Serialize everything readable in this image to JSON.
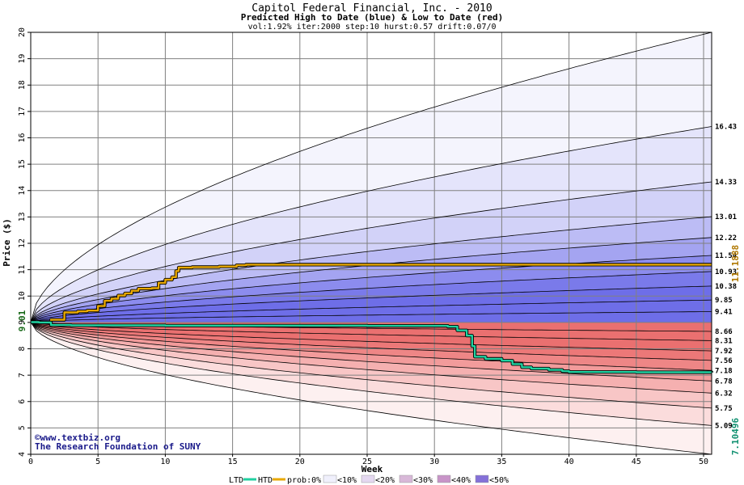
{
  "chart_data": {
    "type": "line",
    "title": "Capitol Federal Financial, Inc. - 2010",
    "subtitle": "Predicted High to Date (blue) &  Low to Date (red)",
    "params": "vol:1.92% iter:2000 step:10 hurst:0.57 drift:0.07/0",
    "xlabel": "Week",
    "ylabel": "Price ($)",
    "xlim": [
      0,
      50.6
    ],
    "ylim": [
      4,
      20
    ],
    "x_ticks": [
      0,
      5,
      10,
      15,
      20,
      25,
      30,
      35,
      40,
      45,
      50
    ],
    "y_ticks": [
      4,
      5,
      6,
      7,
      8,
      9,
      10,
      11,
      12,
      13,
      14,
      15,
      16,
      17,
      18,
      19,
      20
    ],
    "grid": true,
    "start_price": "9.01",
    "upper_contour_ends": [
      16.43,
      14.33,
      13.01,
      12.22,
      11.54,
      10.93,
      10.38,
      9.85,
      9.41
    ],
    "lower_contour_ends": [
      8.66,
      8.31,
      7.92,
      7.56,
      7.18,
      6.78,
      6.32,
      5.75,
      5.09
    ],
    "upper_end_labels": [
      "16.43",
      "14.33",
      "13.01",
      "12.22",
      "11.54",
      "10.93",
      "10.38",
      "9.85",
      "9.41"
    ],
    "lower_end_labels": [
      "8.66",
      "8.31",
      "7.92",
      "7.56",
      "7.18",
      "6.78",
      "6.32",
      "5.75",
      "5.09"
    ],
    "outer_bounds": {
      "upper_end": 20.0,
      "lower_end": 4.0
    },
    "series": [
      {
        "name": "HTD",
        "color": "#e8a800",
        "end_label": "11.1888",
        "x": [
          0,
          0.6,
          1.5,
          2.5,
          3.5,
          4.2,
          5,
          5.5,
          6,
          6.5,
          7,
          7.5,
          8,
          9,
          9.5,
          10,
          10.5,
          10.8,
          11,
          12,
          13,
          14,
          15,
          15.3,
          16,
          20,
          25,
          30,
          35,
          40,
          45,
          50.6
        ],
        "y": [
          9.01,
          9.01,
          9.1,
          9.38,
          9.42,
          9.45,
          9.62,
          9.82,
          9.9,
          10.02,
          10.1,
          10.2,
          10.28,
          10.3,
          10.5,
          10.62,
          10.72,
          10.95,
          11.08,
          11.1,
          11.1,
          11.12,
          11.12,
          11.17,
          11.19,
          11.19,
          11.19,
          11.19,
          11.19,
          11.19,
          11.19,
          11.19
        ]
      },
      {
        "name": "LTD",
        "color": "#20d0a0",
        "end_label": "7.10496",
        "x": [
          0,
          0.6,
          1.5,
          3,
          5,
          10,
          15,
          20,
          25,
          30,
          31,
          31.7,
          32.4,
          32.8,
          33,
          33.8,
          35,
          35.8,
          36.5,
          37.2,
          38.5,
          39.5,
          40,
          45,
          50.6
        ],
        "y": [
          9.01,
          9.0,
          8.9,
          8.89,
          8.89,
          8.88,
          8.88,
          8.88,
          8.87,
          8.87,
          8.84,
          8.7,
          8.5,
          8.1,
          7.7,
          7.62,
          7.55,
          7.42,
          7.3,
          7.25,
          7.2,
          7.15,
          7.12,
          7.11,
          7.105
        ]
      }
    ]
  },
  "credits": {
    "line1": "©www.textbiz.org",
    "line2": "The Research Foundation of SUNY"
  },
  "legend": {
    "ltd": "LTD",
    "htd": "HTD",
    "prob_prefix": "prob:0%",
    "bins": [
      "<10%",
      "<20%",
      "<30%",
      "<40%",
      "<50%"
    ]
  },
  "colors": {
    "up_bands": [
      "#f4f4fd",
      "#e4e4fb",
      "#d2d2f8",
      "#bcbcf5",
      "#a4a4f1",
      "#8c8cee",
      "#7a7aea",
      "#6e6ee8"
    ],
    "down_bands": [
      "#fdf0f0",
      "#fbdcdc",
      "#f8c6c6",
      "#f5b0b0",
      "#f29b9b",
      "#ee8686",
      "#ec7878",
      "#ea7070"
    ],
    "legend_swatches": [
      "#ffffff",
      "#f0f0fc",
      "#e4d8f0",
      "#d8b8d8",
      "#c894c8",
      "#8470d8"
    ],
    "htd": "#e8a800",
    "ltd": "#20d0a0",
    "grid": "#808080"
  }
}
